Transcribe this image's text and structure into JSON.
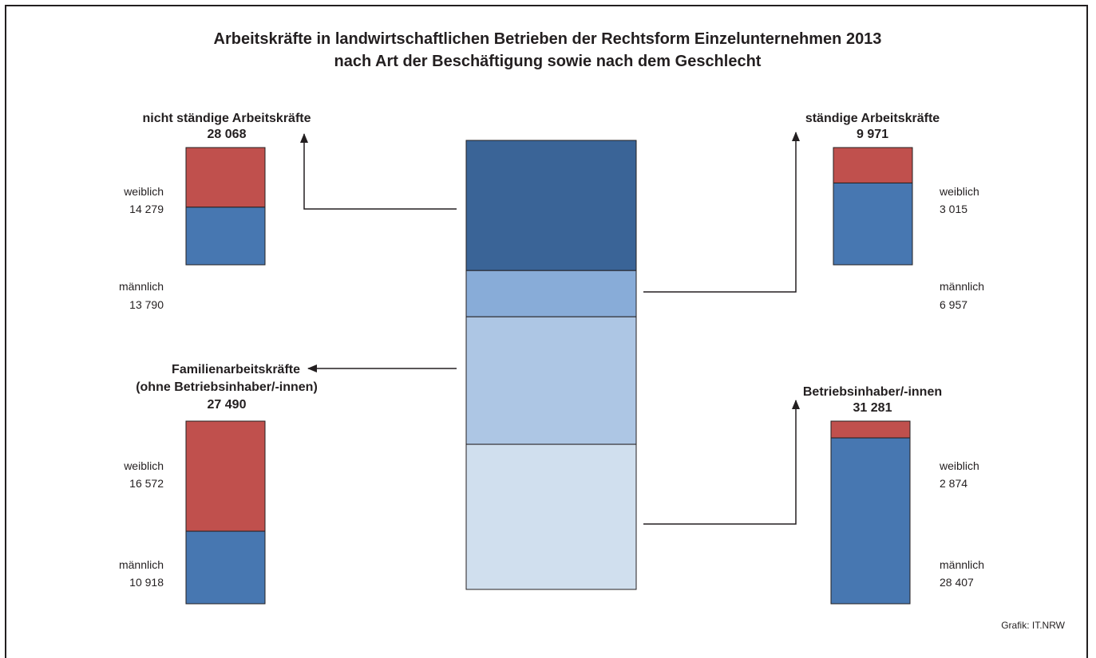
{
  "chart_data": {
    "type": "bar",
    "title_line1": "Arbeitskräfte in landwirtschaftlichen Betrieben der Rechtsform Einzelunternehmen 2013",
    "title_line2": "nach Art der Beschäftigung sowie nach dem Geschlecht",
    "source": "Grafik: IT.NRW",
    "colors": {
      "weiblich": "#c0504d",
      "maennlich": "#4777b1",
      "total": [
        "#3a6497",
        "#88acd8",
        "#adc6e4",
        "#d0dfee"
      ],
      "stroke": "#231f20"
    },
    "total_segments": [
      {
        "name": "nicht ständige Arbeitskräfte",
        "value": 28068
      },
      {
        "name": "ständige Arbeitskräfte",
        "value": 9971
      },
      {
        "name": "Familienarbeitskräfte (ohne Betriebsinhaber/-innen)",
        "value": 27490
      },
      {
        "name": "Betriebsinhaber/-innen",
        "value": 31281
      }
    ],
    "groups": {
      "nicht_staendig": {
        "title": "nicht ständige Arbeitskräfte",
        "total": "28 068",
        "weiblich_label": "weiblich",
        "weiblich": 14279,
        "weiblich_text": "14 279",
        "maennlich_label": "männlich",
        "maennlich": 13790,
        "maennlich_text": "13 790"
      },
      "staendig": {
        "title": "ständige Arbeitskräfte",
        "total": "9 971",
        "weiblich_label": "weiblich",
        "weiblich": 3015,
        "weiblich_text": "3 015",
        "maennlich_label": "männlich",
        "maennlich": 6957,
        "maennlich_text": "6 957"
      },
      "familie": {
        "title1": "Familienarbeitskräfte",
        "title2": "(ohne Betriebsinhaber/-innen)",
        "total": "27 490",
        "weiblich_label": "weiblich",
        "weiblich": 16572,
        "weiblich_text": "16 572",
        "maennlich_label": "männlich",
        "maennlich": 10918,
        "maennlich_text": "10 918"
      },
      "inhaber": {
        "title": "Betriebsinhaber/-innen",
        "total": "31 281",
        "weiblich_label": "weiblich",
        "weiblich": 2874,
        "weiblich_text": "2 874",
        "maennlich_label": "männlich",
        "maennlich": 28407,
        "maennlich_text": "28 407"
      }
    }
  }
}
